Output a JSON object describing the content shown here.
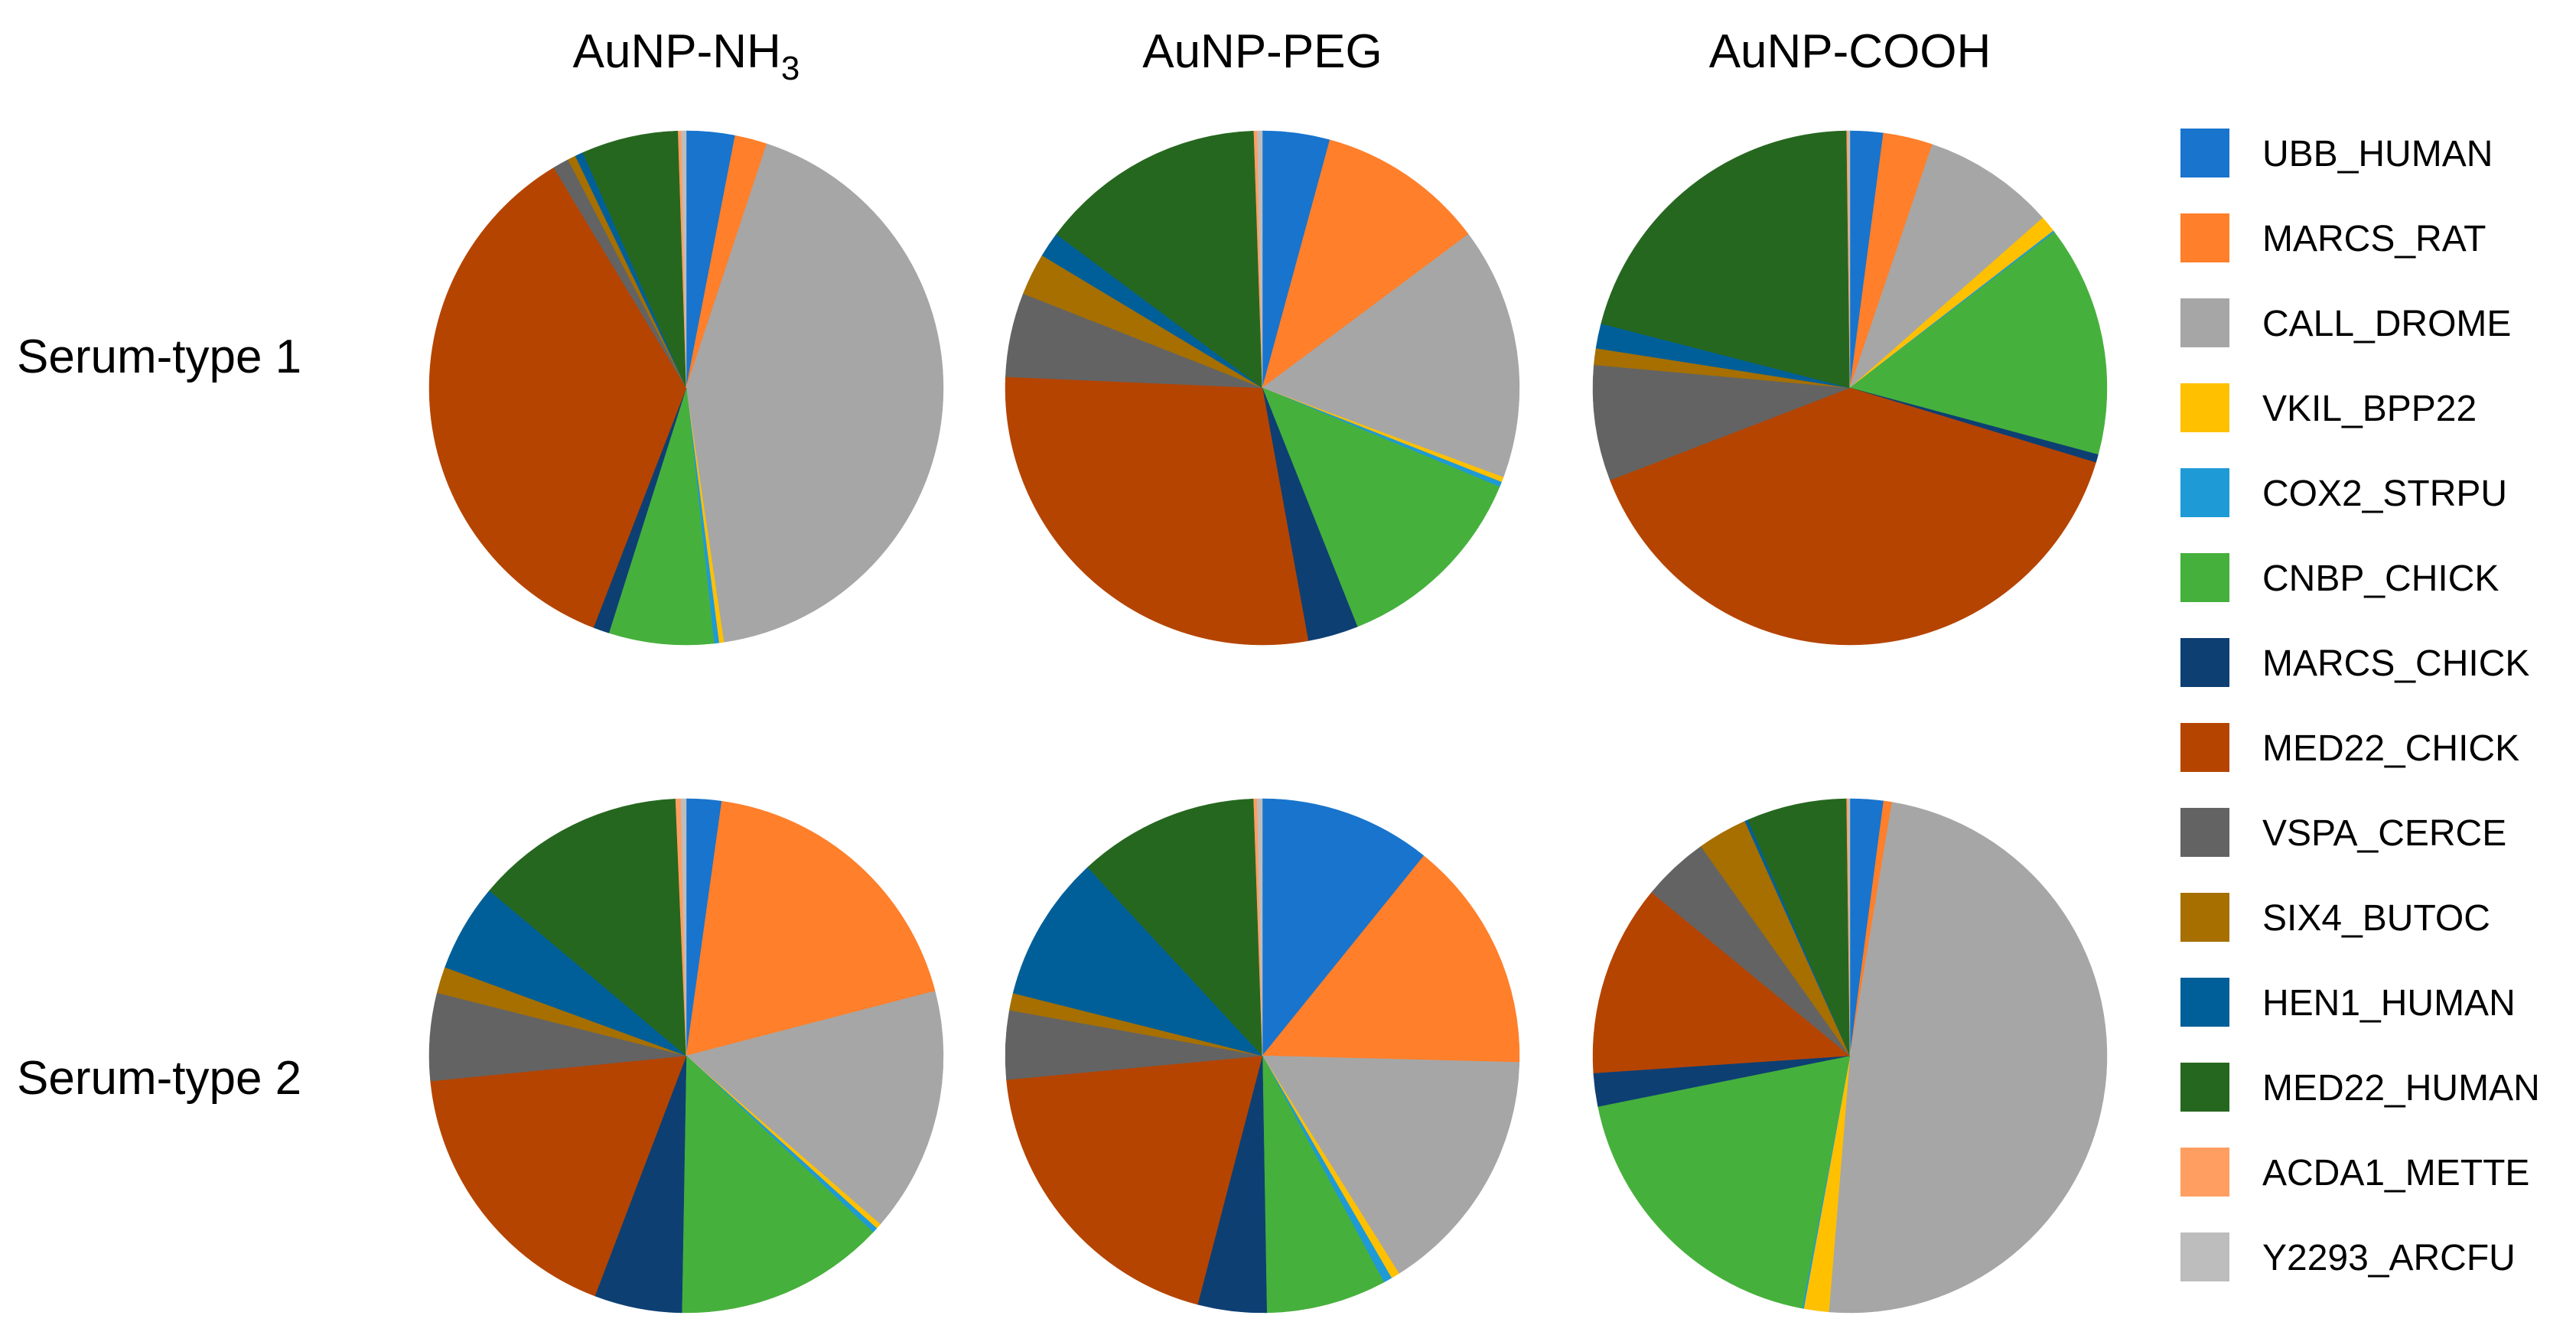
{
  "chart_data": {
    "type": "pie",
    "columns": [
      {
        "prefix": "AuNP-NH",
        "sub": "3"
      },
      {
        "prefix": "AuNP-PEG",
        "sub": ""
      },
      {
        "prefix": "AuNP-COOH",
        "sub": ""
      }
    ],
    "rows": [
      "Serum-type 1",
      "Serum-type 2"
    ],
    "legend": [
      {
        "name": "UBB_HUMAN",
        "color": "#1874CD"
      },
      {
        "name": "MARCS_RAT",
        "color": "#FF7F2A"
      },
      {
        "name": "CALL_DROME",
        "color": "#A6A6A6"
      },
      {
        "name": "VKIL_BPP22",
        "color": "#FFC000"
      },
      {
        "name": "COX2_STRPU",
        "color": "#1E9AD6"
      },
      {
        "name": "CNBP_CHICK",
        "color": "#46B03C"
      },
      {
        "name": "MARCS_CHICK",
        "color": "#0D3F73"
      },
      {
        "name": "MED22_CHICK",
        "color": "#B54400"
      },
      {
        "name": "VSPA_CERCE",
        "color": "#636363"
      },
      {
        "name": "SIX4_BUTOC",
        "color": "#A66F00"
      },
      {
        "name": "HEN1_HUMAN",
        "color": "#005F98"
      },
      {
        "name": "MED22_HUMAN",
        "color": "#26671F"
      },
      {
        "name": "ACDA1_METTE",
        "color": "#FF9E60"
      },
      {
        "name": "Y2293_ARCFU",
        "color": "#BDBDBD"
      }
    ],
    "pies": [
      [
        [
          3.0,
          2.0,
          42.0,
          0.3,
          0.3,
          6.5,
          1.0,
          35.0,
          1.0,
          0.5,
          0.5,
          6.0,
          0.2,
          0.3
        ],
        [
          4.0,
          10.0,
          15.0,
          0.3,
          0.3,
          12.0,
          3.0,
          27.0,
          5.0,
          2.5,
          1.5,
          13.5,
          0.2,
          0.3
        ],
        [
          2.0,
          3.0,
          8.0,
          1.0,
          0.1,
          14.0,
          0.5,
          38.0,
          7.0,
          1.0,
          1.5,
          20.0,
          0.1,
          0.1
        ]
      ],
      [
        [
          2.0,
          17.0,
          14.0,
          0.3,
          0.3,
          12.0,
          5.0,
          16.0,
          5.0,
          1.5,
          5.0,
          12.0,
          0.3,
          0.3
        ],
        [
          10.0,
          13.5,
          14.5,
          0.5,
          0.5,
          7.0,
          4.0,
          18.0,
          4.0,
          1.0,
          8.5,
          10.5,
          0.2,
          0.3
        ],
        [
          2.0,
          0.5,
          46.5,
          1.5,
          0.1,
          18.0,
          2.0,
          11.5,
          4.0,
          3.0,
          0.2,
          6.0,
          0.1,
          0.1
        ]
      ]
    ]
  }
}
